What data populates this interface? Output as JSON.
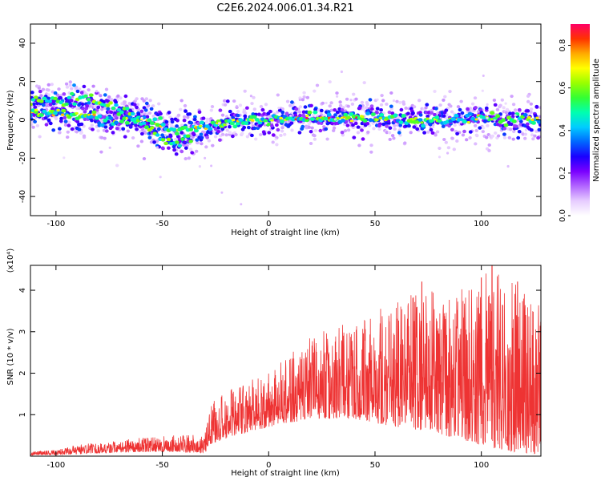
{
  "figure": {
    "title": "C2E6.2024.006.01.34.R21"
  },
  "chart_data": [
    {
      "type": "heatmap",
      "xlabel": "Height of straight line (km)",
      "ylabel": "Frequency (Hz)",
      "xlim": [
        -112,
        128
      ],
      "ylim": [
        -50,
        50
      ],
      "xticks": [
        -100,
        -50,
        0,
        50,
        100
      ],
      "yticks": [
        -40,
        -20,
        0,
        20,
        40
      ],
      "grid": false,
      "colorbar": {
        "label": "Normalized spectral amplitude",
        "range": [
          0,
          0.9
        ],
        "ticks": [
          0.0,
          0.2,
          0.4,
          0.6,
          0.8
        ],
        "colormap": [
          "#ffffff",
          "#e6ccff",
          "#b266ff",
          "#7a00ff",
          "#1a00ff",
          "#0066ff",
          "#00ccff",
          "#00ffb0",
          "#33ff33",
          "#99ff00",
          "#ffff00",
          "#ffaa00",
          "#ff3300",
          "#ff0066"
        ]
      },
      "ridge": [
        {
          "x": -110,
          "y": 4
        },
        {
          "x": -100,
          "y": 3
        },
        {
          "x": -90,
          "y": 2
        },
        {
          "x": -80,
          "y": 1
        },
        {
          "x": -70,
          "y": 0
        },
        {
          "x": -60,
          "y": -1
        },
        {
          "x": -50,
          "y": -3
        },
        {
          "x": -40,
          "y": -5
        },
        {
          "x": -30,
          "y": -4
        },
        {
          "x": -20,
          "y": -2
        },
        {
          "x": -10,
          "y": -1
        },
        {
          "x": 0,
          "y": 0
        },
        {
          "x": 20,
          "y": 1
        },
        {
          "x": 40,
          "y": 1
        },
        {
          "x": 60,
          "y": 0
        },
        {
          "x": 80,
          "y": 0
        },
        {
          "x": 100,
          "y": 1
        },
        {
          "x": 128,
          "y": 0
        }
      ],
      "secondary_ridge": [
        {
          "x": -110,
          "y": 11
        },
        {
          "x": -95,
          "y": 10
        },
        {
          "x": -85,
          "y": 12
        },
        {
          "x": -75,
          "y": 8
        },
        {
          "x": -65,
          "y": 4
        },
        {
          "x": -55,
          "y": -6
        },
        {
          "x": -45,
          "y": -12
        },
        {
          "x": -38,
          "y": -10
        }
      ]
    },
    {
      "type": "line",
      "xlabel": "Height of straight line (km)",
      "ylabel": "SNR (10 * v/v)",
      "multiplier": "(x10⁴)",
      "xlim": [
        -112,
        128
      ],
      "ylim": [
        0,
        4.6
      ],
      "xticks": [
        -100,
        -50,
        0,
        50,
        100
      ],
      "yticks": [
        1,
        2,
        3,
        4
      ],
      "grid": false,
      "series": [
        {
          "color": "#ee3333",
          "envelope": [
            {
              "x": -112,
              "low": 0.02,
              "high": 0.12
            },
            {
              "x": -100,
              "low": 0.03,
              "high": 0.15
            },
            {
              "x": -90,
              "low": 0.05,
              "high": 0.28
            },
            {
              "x": -75,
              "low": 0.08,
              "high": 0.35
            },
            {
              "x": -60,
              "low": 0.1,
              "high": 0.45
            },
            {
              "x": -45,
              "low": 0.1,
              "high": 0.5
            },
            {
              "x": -30,
              "low": 0.08,
              "high": 0.55
            },
            {
              "x": -27,
              "low": 0.3,
              "high": 1.3
            },
            {
              "x": -15,
              "low": 0.5,
              "high": 1.7
            },
            {
              "x": 0,
              "low": 0.7,
              "high": 2.0
            },
            {
              "x": 20,
              "low": 0.9,
              "high": 2.9
            },
            {
              "x": 40,
              "low": 0.9,
              "high": 3.3
            },
            {
              "x": 50,
              "low": 0.8,
              "high": 3.6
            },
            {
              "x": 60,
              "low": 0.7,
              "high": 3.8
            },
            {
              "x": 75,
              "low": 0.6,
              "high": 4.0
            },
            {
              "x": 90,
              "low": 0.4,
              "high": 4.0
            },
            {
              "x": 105,
              "low": 0.2,
              "high": 4.5
            },
            {
              "x": 115,
              "low": 0.1,
              "high": 4.2
            },
            {
              "x": 128,
              "low": 0.05,
              "high": 3.6
            }
          ],
          "peaks": [
            {
              "x": 72,
              "y": 4.2
            },
            {
              "x": 105,
              "y": 4.6
            },
            {
              "x": 117,
              "y": 4.2
            },
            {
              "x": 100,
              "y": 4.3
            }
          ]
        }
      ]
    }
  ]
}
